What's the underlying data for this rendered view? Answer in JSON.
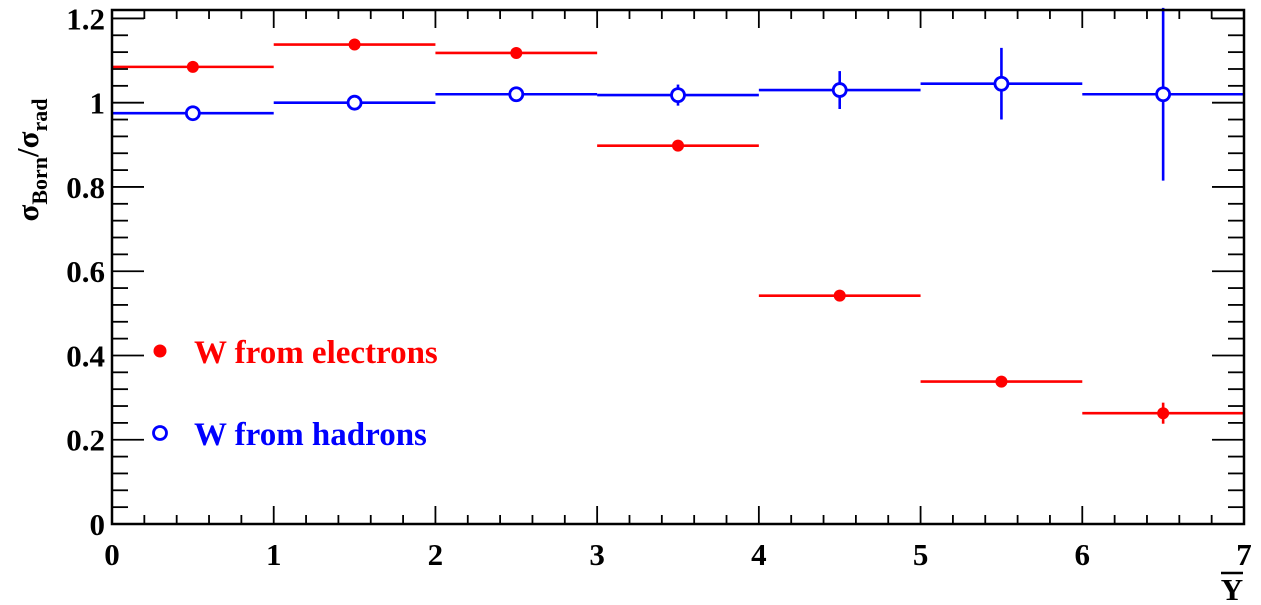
{
  "chart_data": {
    "type": "scatter",
    "xlabel": "Y",
    "ylabel": {
      "base1": "σ",
      "sub1": "Born",
      "sep": "/",
      "base2": "σ",
      "sub2": "rad"
    },
    "xlim": [
      0,
      7
    ],
    "ylim": [
      0,
      1.22
    ],
    "x_ticks": [
      "0",
      "1",
      "2",
      "3",
      "4",
      "5",
      "6",
      "7"
    ],
    "y_ticks": [
      "0",
      "0.2",
      "0.4",
      "0.6",
      "0.8",
      "1",
      "1.2"
    ],
    "grid": false,
    "legend_position": "lower-left",
    "series": [
      {
        "name": "W from electrons",
        "color": "#ff0000",
        "marker": "filled-circle",
        "points": [
          {
            "x": 0.5,
            "x_err": 0.5,
            "y": 1.085,
            "y_err": 0.012
          },
          {
            "x": 1.5,
            "x_err": 0.5,
            "y": 1.138,
            "y_err": 0.006
          },
          {
            "x": 2.5,
            "x_err": 0.5,
            "y": 1.118,
            "y_err": 0.006
          },
          {
            "x": 3.5,
            "x_err": 0.5,
            "y": 0.898,
            "y_err": 0.008
          },
          {
            "x": 4.5,
            "x_err": 0.5,
            "y": 0.542,
            "y_err": 0.008
          },
          {
            "x": 5.5,
            "x_err": 0.5,
            "y": 0.338,
            "y_err": 0.008
          },
          {
            "x": 6.5,
            "x_err": 0.5,
            "y": 0.263,
            "y_err": 0.025
          }
        ]
      },
      {
        "name": "W from hadrons",
        "color": "#0000ff",
        "marker": "open-circle",
        "points": [
          {
            "x": 0.5,
            "x_err": 0.5,
            "y": 0.975,
            "y_err": 0.006
          },
          {
            "x": 1.5,
            "x_err": 0.5,
            "y": 1.0,
            "y_err": 0.006
          },
          {
            "x": 2.5,
            "x_err": 0.5,
            "y": 1.02,
            "y_err": 0.006
          },
          {
            "x": 3.5,
            "x_err": 0.5,
            "y": 1.018,
            "y_err": 0.025
          },
          {
            "x": 4.5,
            "x_err": 0.5,
            "y": 1.03,
            "y_err": 0.045
          },
          {
            "x": 5.5,
            "x_err": 0.5,
            "y": 1.045,
            "y_err": 0.085
          },
          {
            "x": 6.5,
            "x_err": 0.5,
            "y": 1.02,
            "y_err": 0.205
          }
        ]
      }
    ]
  }
}
